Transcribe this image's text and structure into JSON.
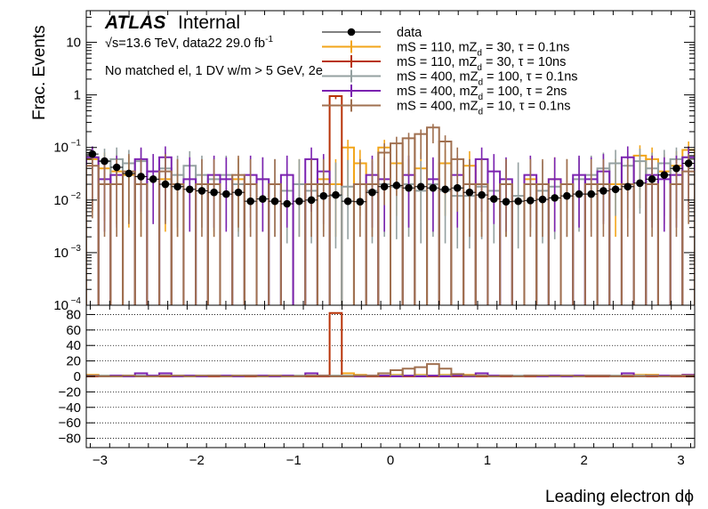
{
  "chart_data": {
    "type": "histogram",
    "atlas_label": "ATLAS",
    "atlas_sub": "Internal",
    "energy_text": "√s=13.6 TeV, data22 29.0 fb",
    "energy_sup": "-1",
    "selection_text": "No matched el, 1 DV w/m > 5 GeV, 2e",
    "xlabel": "Leading electron dϕ",
    "ylabel_top": "Frac. Events",
    "xlim": [
      -3.1416,
      3.1416
    ],
    "ylim_top": [
      0.0001,
      40
    ],
    "ylim_bottom": [
      -92,
      92
    ],
    "log_y_top": true,
    "grid_bottom": true,
    "legend_position": "top-right",
    "x_ticks": [
      {
        "v": -3,
        "label": "−3"
      },
      {
        "v": -2,
        "label": "−2"
      },
      {
        "v": -1,
        "label": "−1"
      },
      {
        "v": 0,
        "label": "0"
      },
      {
        "v": 1,
        "label": "1"
      },
      {
        "v": 2,
        "label": "2"
      },
      {
        "v": 3,
        "label": "3"
      }
    ],
    "y_ticks_top": [
      {
        "v": 10,
        "label": "10"
      },
      {
        "v": 1,
        "label": "1"
      },
      {
        "v": 0.1,
        "label": "10",
        "sup": "−1"
      },
      {
        "v": 0.01,
        "label": "10",
        "sup": "−2"
      },
      {
        "v": 0.001,
        "label": "10",
        "sup": "−3"
      },
      {
        "v": 0.0001,
        "label": "10",
        "sup": "−4"
      }
    ],
    "y_ticks_bottom": [
      -80,
      -60,
      -40,
      -20,
      0,
      20,
      40,
      60,
      80
    ],
    "bins": 50,
    "data_series": {
      "name": "data",
      "color": "#000000",
      "values": [
        0.075,
        0.055,
        0.042,
        0.032,
        0.028,
        0.025,
        0.02,
        0.018,
        0.016,
        0.015,
        0.014,
        0.013,
        0.014,
        0.0095,
        0.0105,
        0.0095,
        0.0085,
        0.0095,
        0.01,
        0.012,
        0.0125,
        0.0095,
        0.0093,
        0.014,
        0.018,
        0.019,
        0.017,
        0.018,
        0.017,
        0.016,
        0.017,
        0.014,
        0.0125,
        0.0105,
        0.0093,
        0.0095,
        0.0098,
        0.0103,
        0.011,
        0.012,
        0.013,
        0.013,
        0.015,
        0.016,
        0.018,
        0.021,
        0.025,
        0.03,
        0.04,
        0.05
      ]
    },
    "series": [
      {
        "name": "mS = 110, mZ",
        "sub": "d",
        "suffix": " = 30, τ = 0.1ns",
        "color": "#f2a51a",
        "values": [
          0.06,
          0.04,
          0.035,
          0.03,
          0.02,
          0,
          0.025,
          0.02,
          0,
          0,
          0.02,
          0,
          0.025,
          0,
          0,
          0,
          0,
          0.02,
          0,
          0.025,
          0.02,
          0.1,
          0.05,
          0,
          0.1,
          0.05,
          0,
          0.04,
          0,
          0.05,
          0,
          0.045,
          0.02,
          0,
          0.02,
          0,
          0.025,
          0,
          0.025,
          0.02,
          0,
          0,
          0,
          0.02,
          0,
          0.07,
          0.06,
          0.035,
          0.045,
          0.09
        ],
        "ratio": [
          2,
          1,
          1,
          1,
          0,
          0,
          1,
          1,
          0,
          0,
          1,
          0,
          1,
          0,
          0,
          0,
          0,
          1,
          0,
          1,
          1,
          4,
          2,
          0,
          4,
          2,
          0,
          2,
          0,
          2,
          0,
          2,
          1,
          0,
          1,
          0,
          1,
          0,
          1,
          1,
          0,
          0,
          0,
          1,
          0,
          2,
          2,
          1,
          1,
          2
        ]
      },
      {
        "name": "mS = 110, mZ",
        "sub": "d",
        "suffix": " = 30, τ = 10ns",
        "color": "#b83308",
        "values": [
          0,
          0,
          0,
          0,
          0,
          0,
          0,
          0,
          0,
          0,
          0,
          0,
          0,
          0,
          0,
          0,
          0,
          0,
          0,
          0,
          0.95,
          0,
          0,
          0,
          0,
          0,
          0,
          0,
          0,
          0,
          0,
          0,
          0,
          0,
          0,
          0,
          0,
          0,
          0,
          0,
          0,
          0,
          0,
          0,
          0,
          0,
          0,
          0,
          0,
          0
        ],
        "ratio": [
          0,
          0,
          0,
          0,
          0,
          0,
          0,
          0,
          0,
          0,
          0,
          0,
          0,
          0,
          0,
          0,
          0,
          0,
          0,
          0,
          82,
          0,
          0,
          0,
          0,
          0,
          0,
          0,
          0,
          0,
          0,
          0,
          0,
          0,
          0,
          0,
          0,
          0,
          0,
          0,
          0,
          0,
          0,
          0,
          0,
          0,
          0,
          0,
          0,
          0
        ]
      },
      {
        "name": "mS = 400, mZ",
        "sub": "d",
        "suffix": " = 100, τ = 0.1ns",
        "color": "#94a0a0",
        "values": [
          0.065,
          0.055,
          0.06,
          0.05,
          0.055,
          0.035,
          0.04,
          0.03,
          0.045,
          0.03,
          0.025,
          0.03,
          0.02,
          0.02,
          0.025,
          0.02,
          0.015,
          0.02,
          0.015,
          0.02,
          0.012,
          0.018,
          0.02,
          0.015,
          0.02,
          0.018,
          0.02,
          0.015,
          0.02,
          0.015,
          0.012,
          0.012,
          0.018,
          0.015,
          0.02,
          0.012,
          0.02,
          0.015,
          0.018,
          0.02,
          0.025,
          0.03,
          0.04,
          0.05,
          0.045,
          0.055,
          0.04,
          0.05,
          0.06,
          0.065
        ],
        "ratio": [
          1,
          1,
          1,
          1,
          1,
          1,
          1,
          1,
          1,
          1,
          1,
          1,
          1,
          1,
          1,
          1,
          1,
          1,
          1,
          1,
          1,
          1,
          1,
          1,
          1,
          1,
          1,
          1,
          1,
          1,
          1,
          1,
          1,
          1,
          1,
          1,
          1,
          1,
          1,
          1,
          1,
          1,
          1,
          1,
          1,
          1,
          1,
          1,
          1,
          1
        ]
      },
      {
        "name": "mS = 400, mZ",
        "sub": "d",
        "suffix": " = 100, τ = 2ns",
        "color": "#7b22b0",
        "values": [
          0.065,
          0.025,
          0.03,
          0,
          0.06,
          0.035,
          0.065,
          0,
          0.025,
          0,
          0.03,
          0.025,
          0,
          0.03,
          0.025,
          0,
          0.03,
          0,
          0.06,
          0.035,
          0,
          0,
          0,
          0.03,
          0.025,
          0,
          0.03,
          0,
          0.025,
          0,
          0.03,
          0,
          0.06,
          0.035,
          0.025,
          0,
          0.03,
          0,
          0.025,
          0,
          0.03,
          0.025,
          0.035,
          0,
          0.065,
          0,
          0.03,
          0.025,
          0.03,
          0.065
        ],
        "ratio": [
          1,
          0,
          1,
          0,
          4,
          1,
          4,
          0,
          1,
          0,
          1,
          1,
          0,
          1,
          1,
          0,
          1,
          0,
          4,
          1,
          0,
          0,
          0,
          1,
          1,
          0,
          1,
          0,
          1,
          0,
          1,
          0,
          4,
          1,
          1,
          0,
          1,
          0,
          1,
          0,
          1,
          1,
          1,
          0,
          4,
          0,
          1,
          1,
          1,
          2
        ]
      },
      {
        "name": "mS = 400, mZ",
        "sub": "d",
        "suffix": " = 10, τ = 0.1ns",
        "color": "#a07050",
        "values": [
          0.045,
          0.02,
          0.02,
          0.035,
          0.02,
          0,
          0.035,
          0.02,
          0,
          0.02,
          0.02,
          0,
          0.03,
          0.02,
          0,
          0.02,
          0,
          0,
          0.02,
          0.02,
          0,
          0,
          0.02,
          0.02,
          0.08,
          0.12,
          0.15,
          0.18,
          0.24,
          0.13,
          0.06,
          0.02,
          0.02,
          0,
          0.02,
          0,
          0.02,
          0.02,
          0,
          0.02,
          0,
          0.02,
          0.02,
          0,
          0.02,
          0,
          0.02,
          0,
          0.02,
          0.035
        ],
        "ratio": [
          1,
          0,
          0,
          1,
          0,
          0,
          1,
          1,
          0,
          1,
          1,
          0,
          1,
          1,
          0,
          1,
          0,
          0,
          1,
          1,
          0,
          0,
          1,
          1,
          4,
          8,
          10,
          12,
          16,
          10,
          3,
          1,
          1,
          0,
          1,
          0,
          1,
          1,
          0,
          1,
          0,
          1,
          1,
          0,
          1,
          0,
          1,
          0,
          1,
          1
        ]
      }
    ]
  }
}
